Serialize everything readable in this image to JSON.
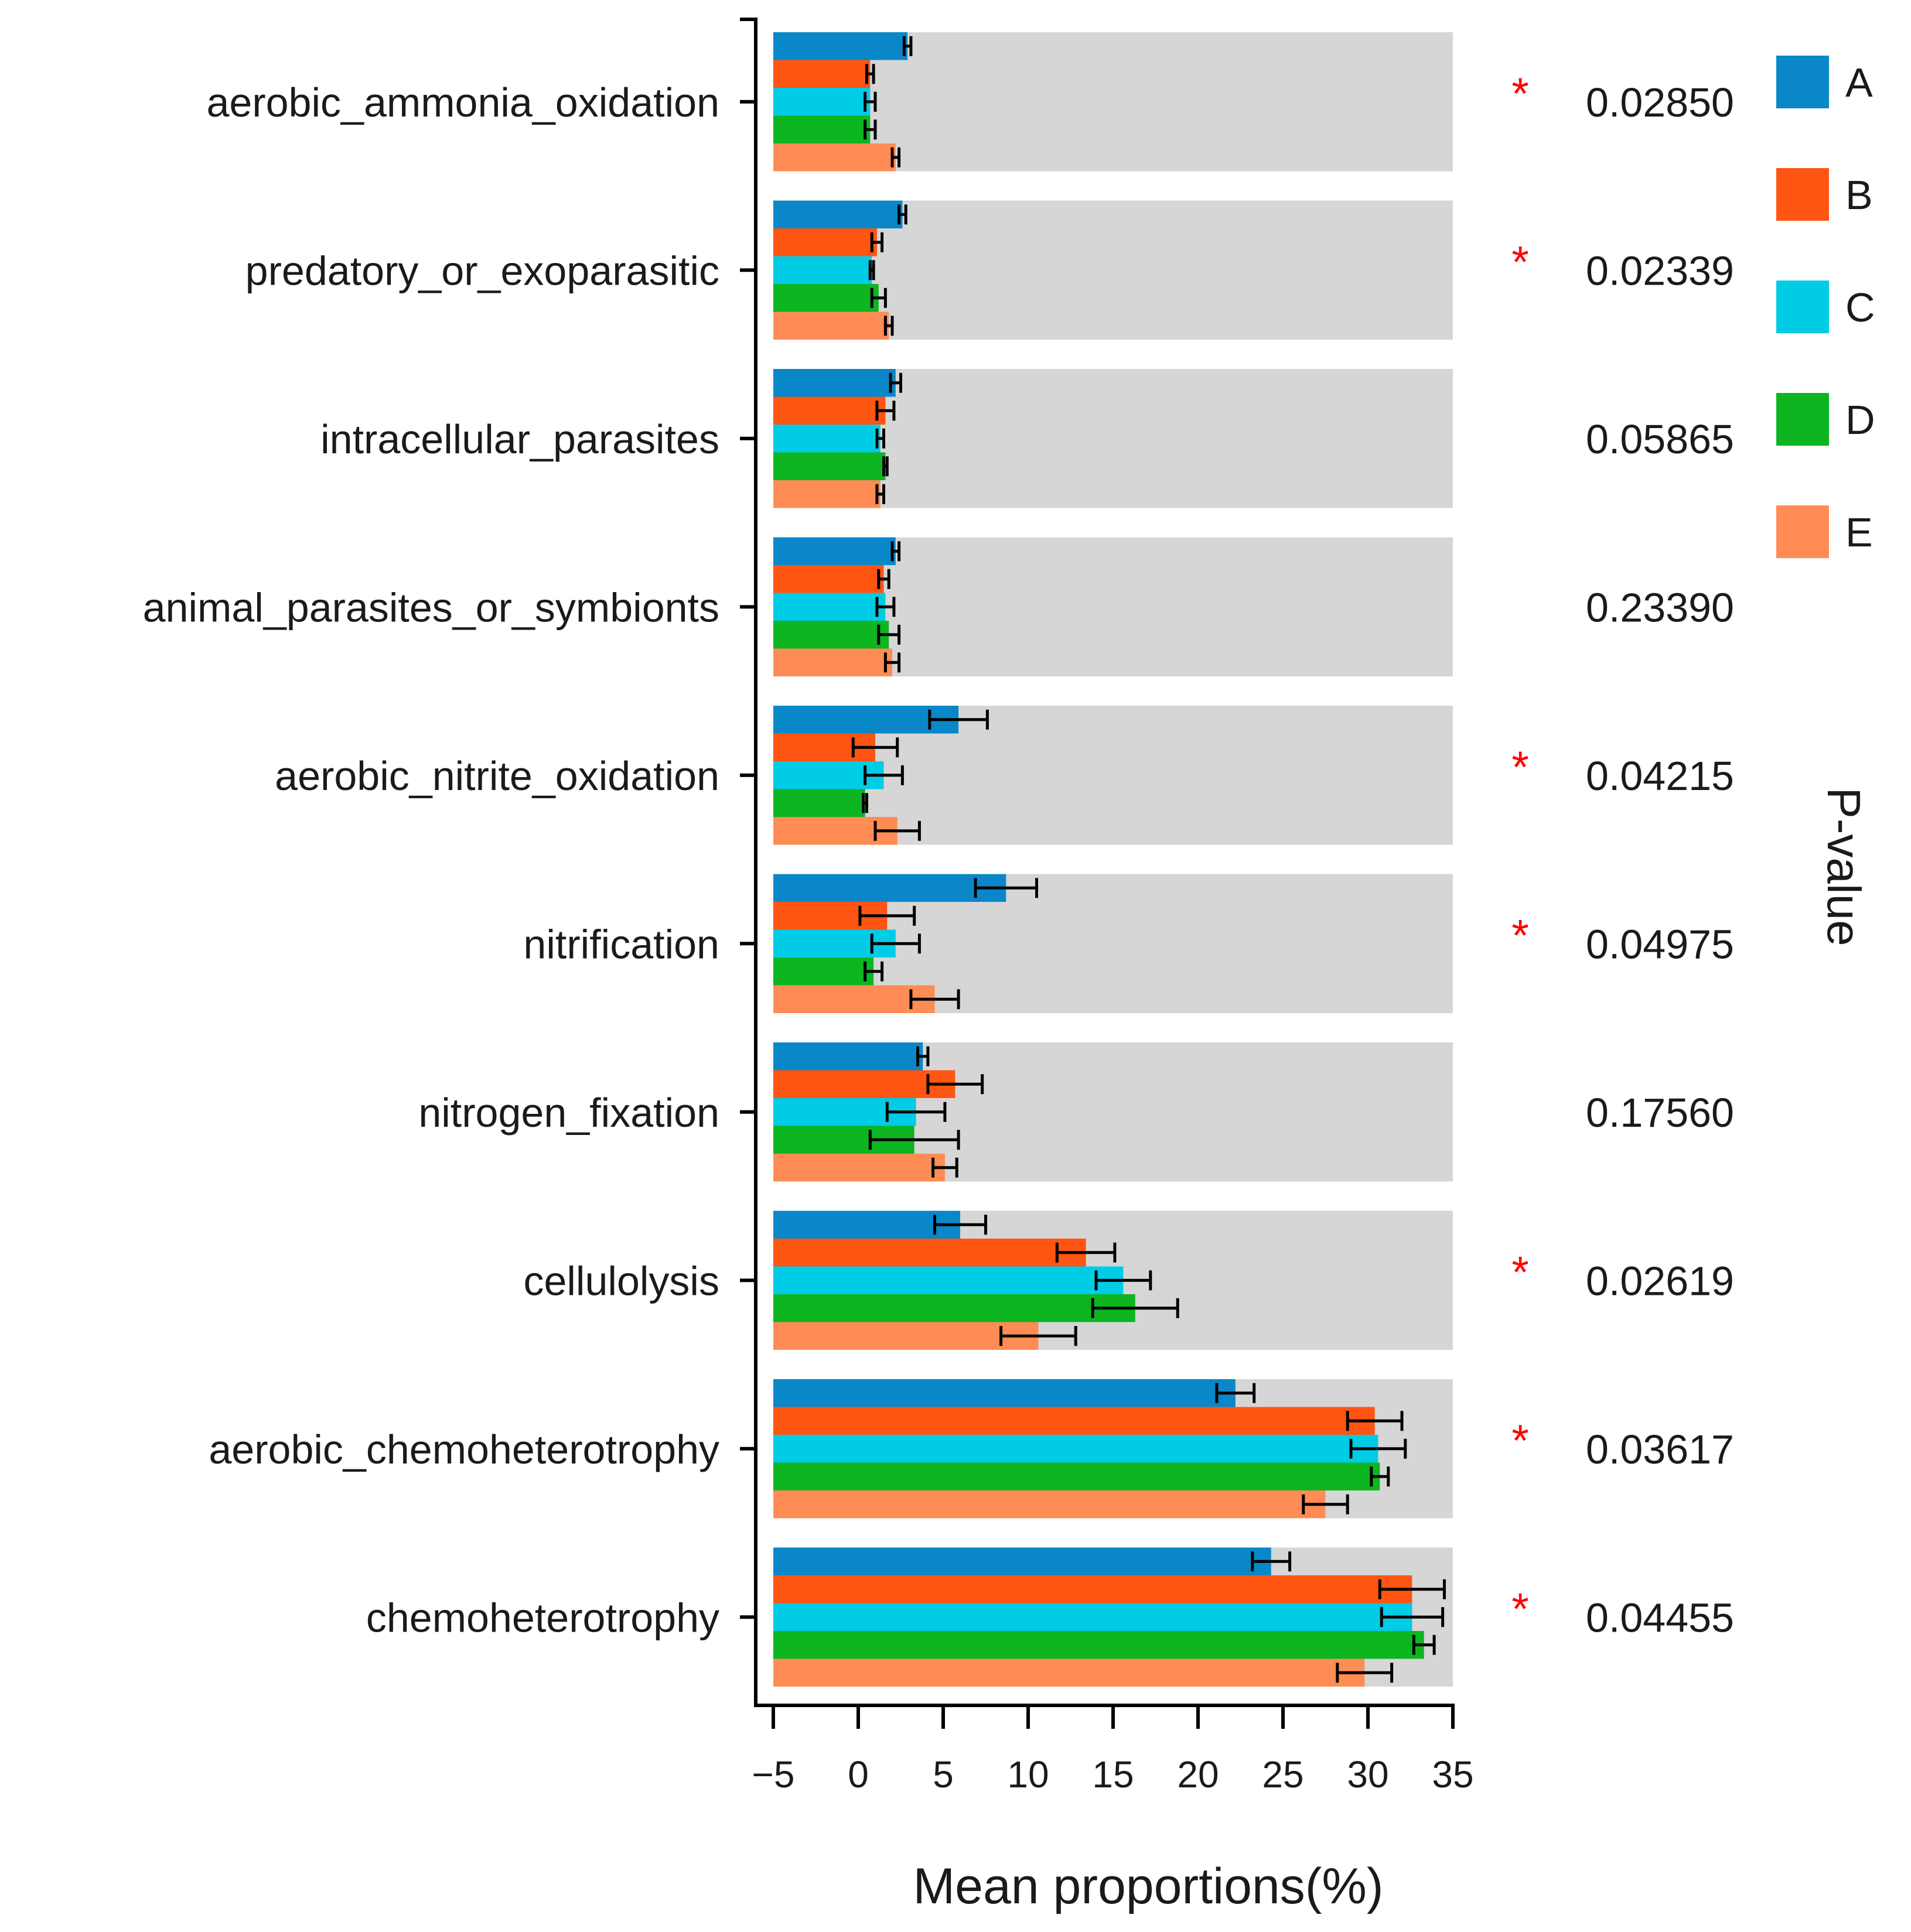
{
  "chart_data": {
    "type": "bar",
    "orientation": "horizontal",
    "xlabel": "Mean proportions(%)",
    "right_label": "P-value",
    "xlim": [
      -5,
      35
    ],
    "xticks": [
      -5,
      0,
      5,
      10,
      15,
      20,
      25,
      30,
      35
    ],
    "xtick_labels": [
      "−5",
      "0",
      "5",
      "10",
      "15",
      "20",
      "25",
      "30",
      "35"
    ],
    "background_band_end": 35,
    "legend_position": "top-right",
    "categories": [
      "aerobic_ammonia_oxidation",
      "predatory_or_exoparasitic",
      "intracellular_parasites",
      "animal_parasites_or_symbionts",
      "aerobic_nitrite_oxidation",
      "nitrification",
      "nitrogen_fixation",
      "cellulolysis",
      "aerobic_chemoheterotrophy",
      "chemoheterotrophy"
    ],
    "p_values": [
      "0.02850",
      "0.02339",
      "0.05865",
      "0.23390",
      "0.04215",
      "0.04975",
      "0.17560",
      "0.02619",
      "0.03617",
      "0.04455"
    ],
    "significant": [
      true,
      true,
      false,
      false,
      true,
      true,
      false,
      true,
      true,
      true
    ],
    "star_symbol": "*",
    "series": [
      {
        "name": "A",
        "color": "#0a87c8",
        "values": [
          2.9,
          2.6,
          2.2,
          2.2,
          5.9,
          8.7,
          3.8,
          6.0,
          22.2,
          24.3
        ],
        "errors": [
          0.2,
          0.2,
          0.3,
          0.2,
          1.7,
          1.8,
          0.3,
          1.5,
          1.1,
          1.1
        ]
      },
      {
        "name": "B",
        "color": "#ff5512",
        "values": [
          0.7,
          1.1,
          1.6,
          1.5,
          1.0,
          1.7,
          5.7,
          13.4,
          30.4,
          32.6
        ],
        "errors": [
          0.2,
          0.3,
          0.5,
          0.3,
          1.3,
          1.6,
          1.6,
          1.7,
          1.6,
          1.9
        ]
      },
      {
        "name": "C",
        "color": "#00cce6",
        "values": [
          0.7,
          0.8,
          1.3,
          1.6,
          1.5,
          2.2,
          3.4,
          15.6,
          30.6,
          32.6
        ],
        "errors": [
          0.3,
          0.1,
          0.2,
          0.5,
          1.1,
          1.4,
          1.7,
          1.6,
          1.6,
          1.8
        ]
      },
      {
        "name": "D",
        "color": "#0db521",
        "values": [
          0.7,
          1.2,
          1.6,
          1.8,
          0.4,
          0.9,
          3.3,
          16.3,
          30.7,
          33.3
        ],
        "errors": [
          0.3,
          0.4,
          0.1,
          0.6,
          0.1,
          0.5,
          2.6,
          2.5,
          0.5,
          0.6
        ]
      },
      {
        "name": "E",
        "color": "#ff8c55",
        "values": [
          2.2,
          1.8,
          1.3,
          2.0,
          2.3,
          4.5,
          5.1,
          10.6,
          27.5,
          29.8
        ],
        "errors": [
          0.2,
          0.2,
          0.2,
          0.4,
          1.3,
          1.4,
          0.7,
          2.2,
          1.3,
          1.6
        ]
      }
    ],
    "band_color": "#d6d6d6"
  }
}
